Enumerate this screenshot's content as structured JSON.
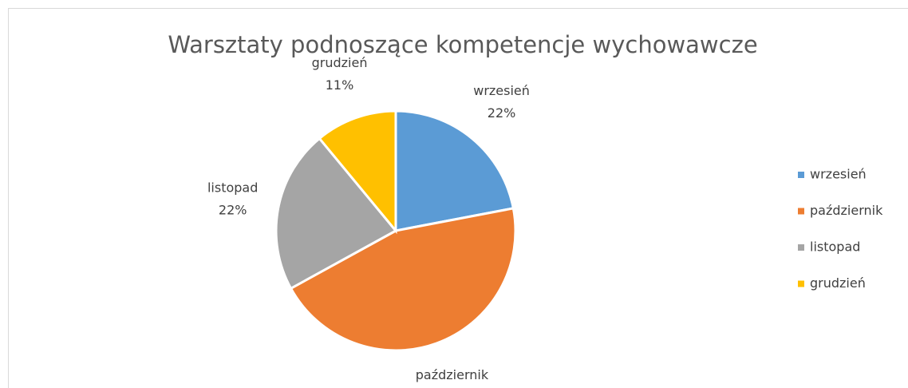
{
  "chart_data": {
    "type": "pie",
    "title": "Warsztaty podnoszące kompetencje wychowawcze",
    "categories": [
      "wrzesień",
      "październik",
      "listopad",
      "grudzień"
    ],
    "values": [
      22,
      45,
      22,
      11
    ],
    "value_labels": [
      "22%",
      "45%",
      "22%",
      "11%"
    ],
    "colors": [
      "#5b9bd5",
      "#ed7d31",
      "#a5a5a5",
      "#ffc000"
    ],
    "legend": "right"
  }
}
